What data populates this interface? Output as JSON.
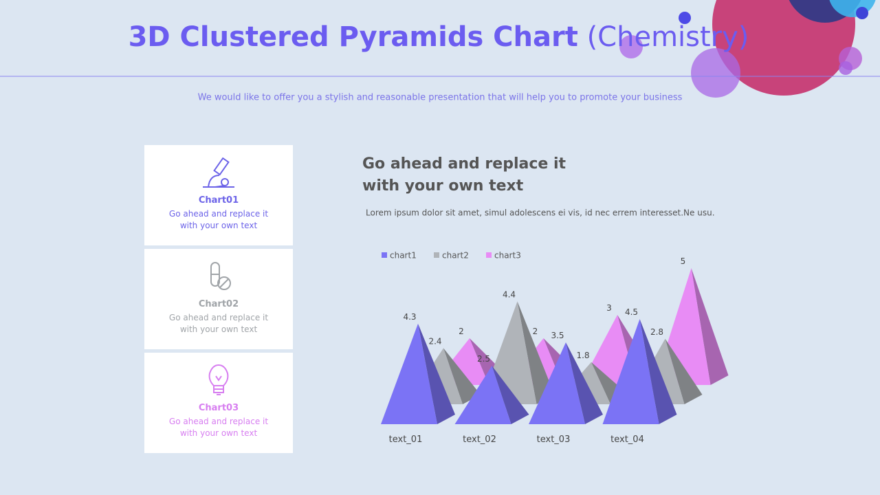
{
  "title_main": "3D Clustered Pyramids Chart",
  "title_sub": "(Chemistry)",
  "subtitle": "We would like to offer you a stylish and reasonable presentation that will help you to promote your business",
  "cards": [
    {
      "title": "Chart01",
      "text": "Go ahead and replace it with your own text"
    },
    {
      "title": "Chart02",
      "text": "Go ahead and replace it with your own text"
    },
    {
      "title": "Chart03",
      "text": "Go ahead and replace it with your own text"
    }
  ],
  "heading": "Go ahead and replace it with your own text",
  "body": "Lorem ipsum dolor sit amet, simul adolescens ei vis, id nec errem interesset.Ne usu.",
  "chart_data": {
    "type": "pyramid3d",
    "categories": [
      "text_01",
      "text_02",
      "text_03",
      "text_04"
    ],
    "series": [
      {
        "name": "chart1",
        "color": "#7b73f5",
        "values": [
          4.3,
          2.5,
          3.5,
          4.5
        ]
      },
      {
        "name": "chart2",
        "color": "#b0b4b9",
        "values": [
          2.4,
          4.4,
          1.8,
          2.8
        ]
      },
      {
        "name": "chart3",
        "color": "#e88cf5",
        "values": [
          2,
          2,
          3,
          5
        ]
      }
    ]
  }
}
